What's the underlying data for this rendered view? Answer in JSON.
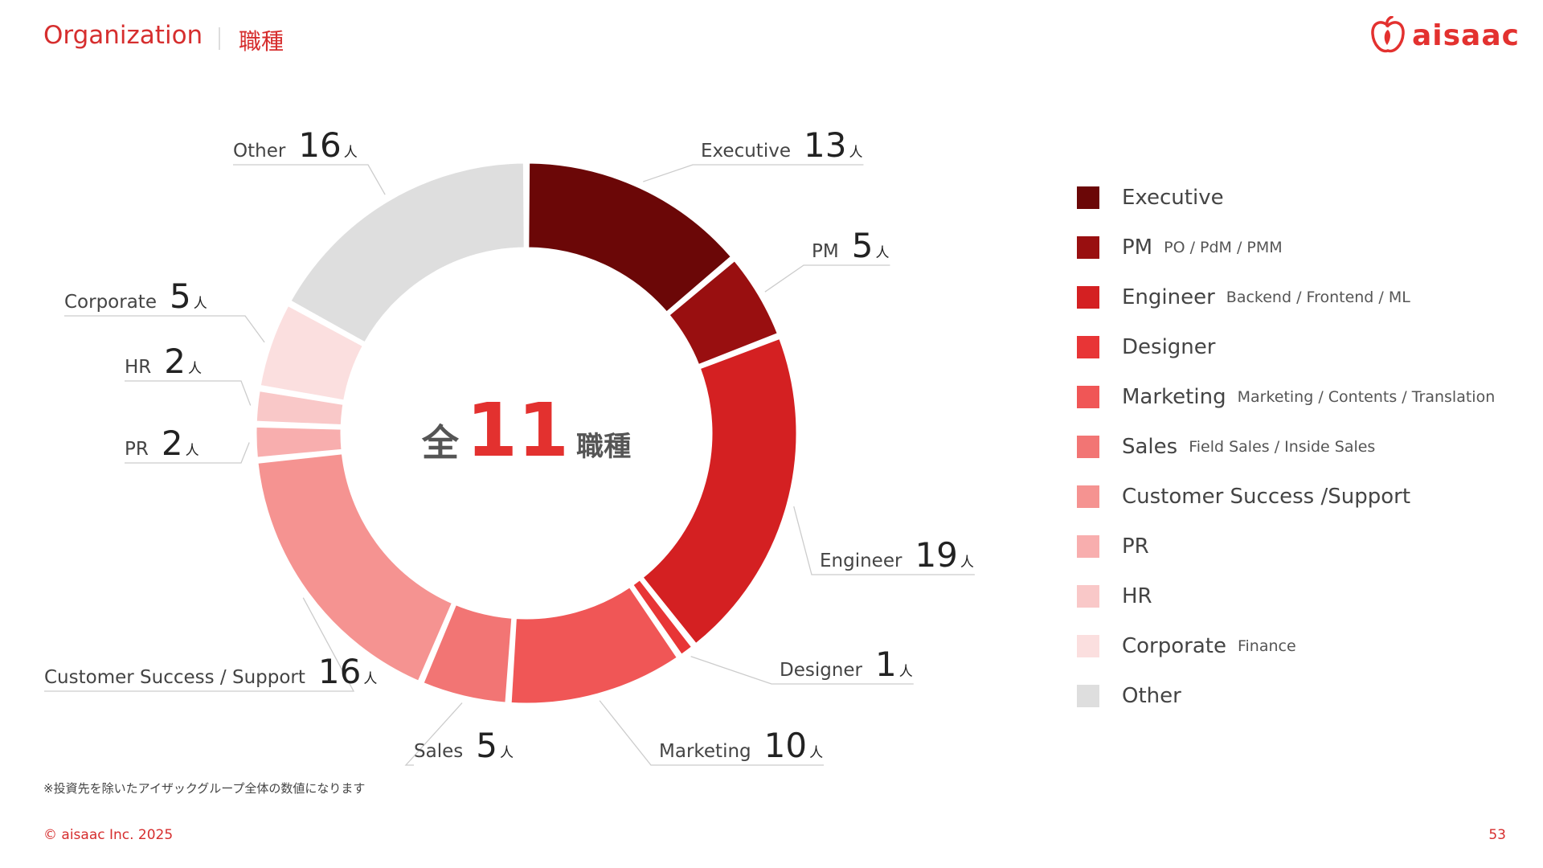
{
  "header": {
    "title": "Organization",
    "subtitle": "職種"
  },
  "logo": {
    "text": "aisaac"
  },
  "center": {
    "prefix": "全",
    "number": "11",
    "suffix": "職種"
  },
  "chart_data": {
    "type": "pie",
    "variant": "donut",
    "total_categories": 11,
    "unit": "人",
    "series": [
      {
        "name": "Executive",
        "value": 13,
        "color": "#6b0707"
      },
      {
        "name": "PM",
        "value": 5,
        "color": "#990f10"
      },
      {
        "name": "Engineer",
        "value": 19,
        "color": "#d42022"
      },
      {
        "name": "Designer",
        "value": 1,
        "color": "#e83536"
      },
      {
        "name": "Marketing",
        "value": 10,
        "color": "#f05656"
      },
      {
        "name": "Sales",
        "value": 5,
        "color": "#f27574"
      },
      {
        "name": "Customer Success / Support",
        "value": 16,
        "color": "#f59391"
      },
      {
        "name": "PR",
        "value": 2,
        "color": "#f8aeae"
      },
      {
        "name": "HR",
        "value": 2,
        "color": "#f9c8c8"
      },
      {
        "name": "Corporate",
        "value": 5,
        "color": "#fbdfdf"
      },
      {
        "name": "Other",
        "value": 16,
        "color": "#dedede"
      }
    ]
  },
  "legend": [
    {
      "label": "Executive",
      "detail": "",
      "color": "#6b0707"
    },
    {
      "label": "PM",
      "detail": "PO / PdM / PMM",
      "color": "#990f10"
    },
    {
      "label": "Engineer",
      "detail": "Backend / Frontend / ML",
      "color": "#d42022"
    },
    {
      "label": "Designer",
      "detail": "",
      "color": "#e83536"
    },
    {
      "label": "Marketing",
      "detail": "Marketing / Contents / Translation",
      "color": "#f05656"
    },
    {
      "label": "Sales",
      "detail": "Field Sales / Inside Sales",
      "color": "#f27574"
    },
    {
      "label": "Customer Success /Support",
      "detail": "",
      "color": "#f59391"
    },
    {
      "label": "PR",
      "detail": "",
      "color": "#f8aeae"
    },
    {
      "label": "HR",
      "detail": "",
      "color": "#f9c8c8"
    },
    {
      "label": "Corporate",
      "detail": "Finance",
      "color": "#fbdfdf"
    },
    {
      "label": "Other",
      "detail": "",
      "color": "#dedede"
    }
  ],
  "footnote": "※投資先を除いたアイザックグループ全体の数値になります",
  "footer": {
    "copyright": "© aisaac Inc. 2025",
    "page": "53"
  }
}
